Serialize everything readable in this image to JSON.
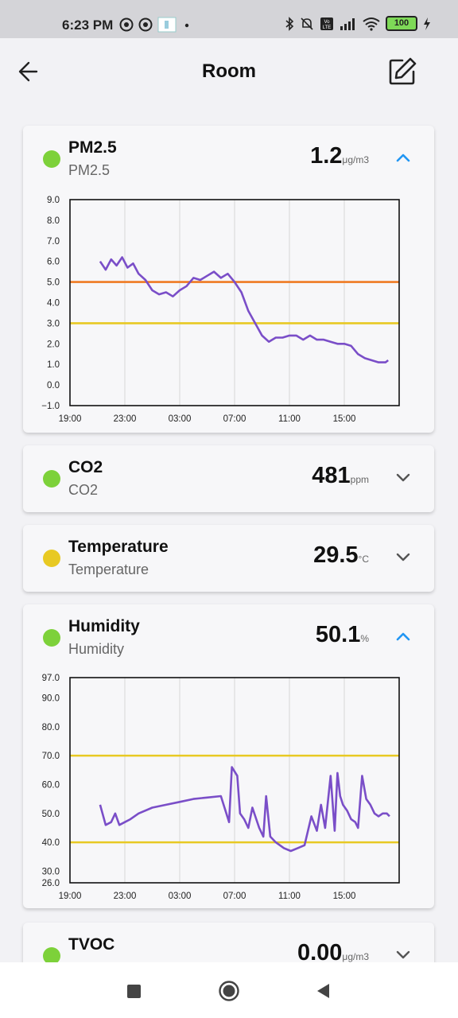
{
  "status_bar": {
    "time": "6:23 PM",
    "battery": "100",
    "icons": [
      "notification-icon",
      "notification-icon",
      "app-thumbnail-icon",
      "dot-icon",
      "bluetooth-icon",
      "mute-icon",
      "volte-icon",
      "signal-icon",
      "wifi-icon",
      "battery-icon",
      "charging-icon"
    ]
  },
  "header": {
    "title": "Room",
    "back_icon": "back-arrow-icon",
    "edit_icon": "edit-icon"
  },
  "colors": {
    "good": "#7dd13a",
    "moderate": "#e8c923",
    "line": "#7a4ec8",
    "threshold_high": "#ef7a22",
    "threshold_low": "#e8c923",
    "expand_active": "#2196f3",
    "expand_idle": "#555555"
  },
  "sensors": [
    {
      "name": "PM2.5",
      "subtitle": "PM2.5",
      "value": "1.2",
      "unit": "μg/m3",
      "status": "good",
      "expanded": true
    },
    {
      "name": "CO2",
      "subtitle": "CO2",
      "value": "481",
      "unit": "ppm",
      "status": "good",
      "expanded": false
    },
    {
      "name": "Temperature",
      "subtitle": "Temperature",
      "value": "29.5",
      "unit": "°C",
      "status": "moderate",
      "expanded": false
    },
    {
      "name": "Humidity",
      "subtitle": "Humidity",
      "value": "50.1",
      "unit": "%",
      "status": "good",
      "expanded": true
    },
    {
      "name": "TVOC",
      "subtitle": "",
      "value": "0.00",
      "unit": "μg/m3",
      "status": "good",
      "expanded": false
    }
  ],
  "chart_data": [
    {
      "type": "line",
      "sensor": "PM2.5",
      "title": "",
      "xlabel": "",
      "ylabel": "",
      "x_ticks": [
        "19:00",
        "23:00",
        "03:00",
        "07:00",
        "11:00",
        "15:00"
      ],
      "x_range_hours": [
        19,
        43
      ],
      "y_ticks": [
        "9.0",
        "8.0",
        "7.0",
        "6.0",
        "5.0",
        "4.0",
        "3.0",
        "2.0",
        "1.0",
        "0.0",
        "−1.0"
      ],
      "y_tick_values": [
        9,
        8,
        7,
        6,
        5,
        4,
        3,
        2,
        1,
        0,
        -1
      ],
      "ylim": [
        -1,
        9
      ],
      "grid": "vertical",
      "thresholds": [
        {
          "value": 5.0,
          "color": "#ef7a22"
        },
        {
          "value": 3.0,
          "color": "#e8c923"
        }
      ],
      "series": [
        {
          "x_hours": [
            21.2,
            21.6,
            22.0,
            22.4,
            22.8,
            23.2,
            23.6,
            24.0,
            24.5,
            25.0,
            25.5,
            26.0,
            26.5,
            27.0,
            27.5,
            28.0,
            28.5,
            29.0,
            29.5,
            30.0,
            30.5,
            31.0,
            31.5,
            32.0,
            32.5,
            33.0,
            33.5,
            34.0,
            34.5,
            35.0,
            35.5,
            36.0,
            36.5,
            37.0,
            37.5,
            38.0,
            38.5,
            39.0,
            39.5,
            40.0,
            40.5,
            41.0,
            41.5,
            42.0,
            42.2
          ],
          "values": [
            6.0,
            5.6,
            6.1,
            5.8,
            6.2,
            5.7,
            5.9,
            5.4,
            5.1,
            4.6,
            4.4,
            4.5,
            4.3,
            4.6,
            4.8,
            5.2,
            5.1,
            5.3,
            5.5,
            5.2,
            5.4,
            5.0,
            4.5,
            3.6,
            3.0,
            2.4,
            2.1,
            2.3,
            2.3,
            2.4,
            2.4,
            2.2,
            2.4,
            2.2,
            2.2,
            2.1,
            2.0,
            2.0,
            1.9,
            1.5,
            1.3,
            1.2,
            1.1,
            1.1,
            1.2
          ]
        }
      ]
    },
    {
      "type": "line",
      "sensor": "Humidity",
      "title": "",
      "xlabel": "",
      "ylabel": "",
      "x_ticks": [
        "19:00",
        "23:00",
        "03:00",
        "07:00",
        "11:00",
        "15:00"
      ],
      "x_range_hours": [
        19,
        43
      ],
      "y_ticks": [
        "97.0",
        "90.0",
        "80.0",
        "70.0",
        "60.0",
        "50.0",
        "40.0",
        "30.0",
        "26.0"
      ],
      "y_tick_values": [
        97,
        90,
        80,
        70,
        60,
        50,
        40,
        30,
        26
      ],
      "ylim": [
        26,
        97
      ],
      "grid": "vertical",
      "thresholds": [
        {
          "value": 70.0,
          "color": "#e8c923"
        },
        {
          "value": 40.0,
          "color": "#e8c923"
        }
      ],
      "series": [
        {
          "x_hours": [
            21.2,
            21.6,
            22.0,
            22.3,
            22.6,
            23.0,
            23.4,
            24.0,
            25.0,
            26.0,
            27.0,
            28.0,
            29.0,
            30.0,
            30.6,
            30.8,
            31.2,
            31.4,
            31.7,
            32.0,
            32.3,
            32.8,
            33.1,
            33.3,
            33.6,
            34.0,
            34.6,
            35.1,
            35.6,
            36.1,
            36.6,
            37.0,
            37.3,
            37.6,
            38.0,
            38.3,
            38.5,
            38.7,
            38.9,
            39.2,
            39.5,
            39.8,
            40.0,
            40.3,
            40.6,
            40.9,
            41.2,
            41.5,
            41.8,
            42.1,
            42.3
          ],
          "values": [
            53,
            46,
            47,
            50,
            46,
            47,
            48,
            50,
            52,
            53,
            54,
            55,
            55.5,
            56,
            47,
            66,
            63,
            50,
            48,
            45,
            52,
            45,
            42,
            56,
            42,
            40,
            38,
            37,
            38,
            39,
            49,
            44,
            53,
            45,
            63,
            44,
            64,
            56,
            53,
            51,
            48,
            47,
            45,
            63,
            55,
            53,
            50,
            49,
            50,
            50,
            49
          ]
        }
      ]
    }
  ]
}
